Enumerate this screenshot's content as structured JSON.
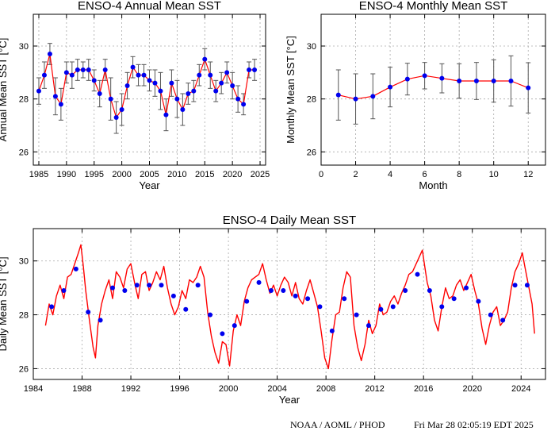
{
  "footer": {
    "left": "NOAA / AOML / PHOD",
    "right": "Fri Mar 28 02:05:19 EDT 2025"
  },
  "colors": {
    "line": "#ff0000",
    "marker": "#0000ee",
    "errorbar": "#555555",
    "grid": "#aaaaaa"
  },
  "chart_data": [
    {
      "id": "annual",
      "type": "line",
      "title": "ENSO-4 Annual Mean SST",
      "xlabel": "Year",
      "ylabel": "Annual Mean SST [°C]",
      "xlim": [
        1984,
        2026
      ],
      "ylim": [
        25.5,
        31.2
      ],
      "xticks": [
        1985,
        1990,
        1995,
        2000,
        2005,
        2010,
        2015,
        2020,
        2025
      ],
      "yticks": [
        26,
        28,
        30
      ],
      "grid": true,
      "error_bars": true,
      "x": [
        1985,
        1986,
        1987,
        1988,
        1989,
        1990,
        1991,
        1992,
        1993,
        1994,
        1995,
        1996,
        1997,
        1998,
        1999,
        2000,
        2001,
        2002,
        2003,
        2004,
        2005,
        2006,
        2007,
        2008,
        2009,
        2010,
        2011,
        2012,
        2013,
        2014,
        2015,
        2016,
        2017,
        2018,
        2019,
        2020,
        2021,
        2022,
        2023,
        2024
      ],
      "y": [
        28.3,
        28.9,
        29.7,
        28.1,
        27.8,
        29.0,
        28.9,
        29.1,
        29.1,
        29.1,
        28.7,
        28.2,
        29.1,
        28.0,
        27.3,
        27.6,
        28.5,
        29.2,
        28.9,
        28.9,
        28.7,
        28.6,
        28.3,
        27.4,
        28.6,
        28.0,
        27.6,
        28.2,
        28.3,
        28.9,
        29.5,
        28.9,
        28.3,
        28.6,
        29.0,
        28.5,
        28.0,
        27.8,
        29.1,
        29.1
      ],
      "err": [
        0.5,
        0.5,
        0.4,
        0.7,
        0.6,
        0.4,
        0.5,
        0.4,
        0.3,
        0.4,
        0.4,
        0.5,
        0.4,
        0.8,
        0.6,
        0.6,
        0.5,
        0.4,
        0.4,
        0.4,
        0.4,
        0.5,
        0.7,
        0.6,
        0.5,
        0.7,
        0.6,
        0.4,
        0.4,
        0.4,
        0.4,
        0.5,
        0.4,
        0.4,
        0.4,
        0.5,
        0.5,
        0.4,
        0.3,
        0.4
      ]
    },
    {
      "id": "monthly",
      "type": "line",
      "title": "ENSO-4 Monthly Mean SST",
      "xlabel": "Month",
      "ylabel": "Monthly Mean SST [°C]",
      "xlim": [
        0,
        13
      ],
      "ylim": [
        25.5,
        31.2
      ],
      "xticks": [
        0,
        2,
        4,
        6,
        8,
        10,
        12
      ],
      "yticks": [
        26,
        28,
        30
      ],
      "grid": true,
      "error_bars": true,
      "x": [
        1,
        2,
        3,
        4,
        5,
        6,
        7,
        8,
        9,
        10,
        11,
        12
      ],
      "y": [
        28.15,
        28.0,
        28.1,
        28.45,
        28.75,
        28.88,
        28.78,
        28.68,
        28.68,
        28.68,
        28.68,
        28.42
      ],
      "err": [
        0.95,
        0.95,
        0.85,
        0.75,
        0.6,
        0.5,
        0.55,
        0.65,
        0.7,
        0.8,
        0.95,
        0.95
      ]
    },
    {
      "id": "daily",
      "type": "line",
      "title": "ENSO-4 Daily Mean SST",
      "xlabel": "Year",
      "ylabel": "Daily Mean SST [°C]",
      "xlim": [
        1984,
        2026
      ],
      "ylim": [
        25.6,
        31.2
      ],
      "xticks": [
        1984,
        1988,
        1992,
        1996,
        2000,
        2004,
        2008,
        2012,
        2016,
        2020,
        2024
      ],
      "yticks": [
        26,
        28,
        30
      ],
      "grid": true,
      "series": [
        {
          "style": "line",
          "x": [
            1985.0,
            1985.3,
            1985.6,
            1985.9,
            1986.2,
            1986.5,
            1986.8,
            1987.1,
            1987.4,
            1987.7,
            1987.9,
            1988.1,
            1988.3,
            1988.6,
            1988.9,
            1989.1,
            1989.3,
            1989.6,
            1989.9,
            1990.2,
            1990.5,
            1990.8,
            1991.1,
            1991.4,
            1991.7,
            1992.0,
            1992.3,
            1992.6,
            1992.9,
            1993.2,
            1993.5,
            1993.8,
            1994.1,
            1994.4,
            1994.7,
            1995.0,
            1995.3,
            1995.6,
            1995.9,
            1996.2,
            1996.5,
            1996.8,
            1997.1,
            1997.4,
            1997.7,
            1998.0,
            1998.3,
            1998.6,
            1998.9,
            1999.2,
            1999.5,
            1999.8,
            2000.1,
            2000.4,
            2000.7,
            2001.0,
            2001.3,
            2001.6,
            2001.9,
            2002.2,
            2002.5,
            2002.8,
            2003.1,
            2003.4,
            2003.7,
            2004.0,
            2004.3,
            2004.6,
            2004.9,
            2005.2,
            2005.5,
            2005.8,
            2006.1,
            2006.4,
            2006.7,
            2007.0,
            2007.3,
            2007.6,
            2007.9,
            2008.2,
            2008.5,
            2008.8,
            2009.1,
            2009.4,
            2009.7,
            2010.0,
            2010.3,
            2010.6,
            2010.9,
            2011.2,
            2011.5,
            2011.8,
            2012.1,
            2012.4,
            2012.7,
            2013.0,
            2013.3,
            2013.6,
            2013.9,
            2014.2,
            2014.5,
            2014.8,
            2015.1,
            2015.4,
            2015.7,
            2015.9,
            2016.1,
            2016.3,
            2016.6,
            2016.9,
            2017.2,
            2017.5,
            2017.8,
            2018.1,
            2018.4,
            2018.7,
            2019.0,
            2019.3,
            2019.6,
            2019.9,
            2020.2,
            2020.5,
            2020.8,
            2021.1,
            2021.4,
            2021.7,
            2022.0,
            2022.3,
            2022.6,
            2022.9,
            2023.2,
            2023.5,
            2023.8,
            2024.1,
            2024.3,
            2024.6,
            2024.9,
            2025.1
          ],
          "y": [
            27.6,
            28.4,
            28.0,
            28.7,
            29.1,
            28.6,
            29.4,
            29.5,
            29.9,
            30.3,
            30.6,
            29.8,
            28.9,
            27.8,
            26.8,
            26.4,
            27.6,
            28.4,
            28.9,
            29.3,
            28.6,
            29.6,
            29.4,
            29.0,
            29.7,
            29.9,
            29.2,
            28.6,
            29.5,
            29.6,
            28.9,
            29.2,
            29.6,
            29.3,
            29.8,
            29.0,
            28.4,
            28.0,
            28.3,
            28.9,
            28.6,
            29.3,
            29.2,
            29.4,
            29.8,
            29.4,
            28.1,
            27.2,
            26.6,
            26.2,
            27.0,
            26.9,
            26.1,
            27.4,
            28.0,
            27.6,
            28.5,
            29.0,
            29.3,
            29.4,
            29.5,
            29.9,
            29.3,
            28.8,
            29.1,
            28.7,
            29.1,
            29.4,
            29.2,
            28.7,
            29.2,
            28.6,
            28.4,
            28.9,
            29.3,
            28.8,
            28.3,
            27.4,
            26.4,
            26.0,
            27.1,
            28.0,
            28.1,
            29.0,
            29.6,
            29.4,
            27.6,
            26.8,
            26.3,
            26.9,
            27.8,
            27.3,
            27.6,
            28.4,
            28.0,
            28.1,
            28.5,
            28.7,
            28.4,
            28.8,
            29.1,
            29.5,
            29.6,
            29.9,
            30.2,
            30.4,
            29.8,
            29.2,
            28.7,
            27.8,
            27.4,
            28.3,
            29.0,
            28.6,
            28.7,
            29.1,
            29.3,
            28.9,
            29.2,
            29.5,
            28.9,
            28.4,
            27.5,
            26.9,
            27.6,
            28.1,
            28.3,
            27.6,
            27.8,
            28.1,
            29.0,
            29.6,
            29.9,
            30.3,
            29.8,
            29.1,
            28.4,
            27.3
          ]
        },
        {
          "style": "markers",
          "x": [
            1985.5,
            1986.5,
            1987.5,
            1988.5,
            1989.5,
            1990.5,
            1991.5,
            1992.5,
            1993.5,
            1994.5,
            1995.5,
            1996.5,
            1997.5,
            1998.5,
            1999.5,
            2000.5,
            2001.5,
            2002.5,
            2003.5,
            2004.5,
            2005.5,
            2006.5,
            2007.5,
            2008.5,
            2009.5,
            2010.5,
            2011.5,
            2012.5,
            2013.5,
            2014.5,
            2015.5,
            2016.5,
            2017.5,
            2018.5,
            2019.5,
            2020.5,
            2021.5,
            2022.5,
            2023.5,
            2024.5
          ],
          "y": [
            28.3,
            28.9,
            29.7,
            28.1,
            27.8,
            29.0,
            28.9,
            29.1,
            29.1,
            29.1,
            28.7,
            28.2,
            29.1,
            28.0,
            27.3,
            27.6,
            28.5,
            29.2,
            28.9,
            28.9,
            28.7,
            28.6,
            28.3,
            27.4,
            28.6,
            28.0,
            27.6,
            28.2,
            28.3,
            28.9,
            29.5,
            28.9,
            28.3,
            28.6,
            29.0,
            28.5,
            28.0,
            27.8,
            29.1,
            29.1
          ]
        }
      ]
    }
  ]
}
